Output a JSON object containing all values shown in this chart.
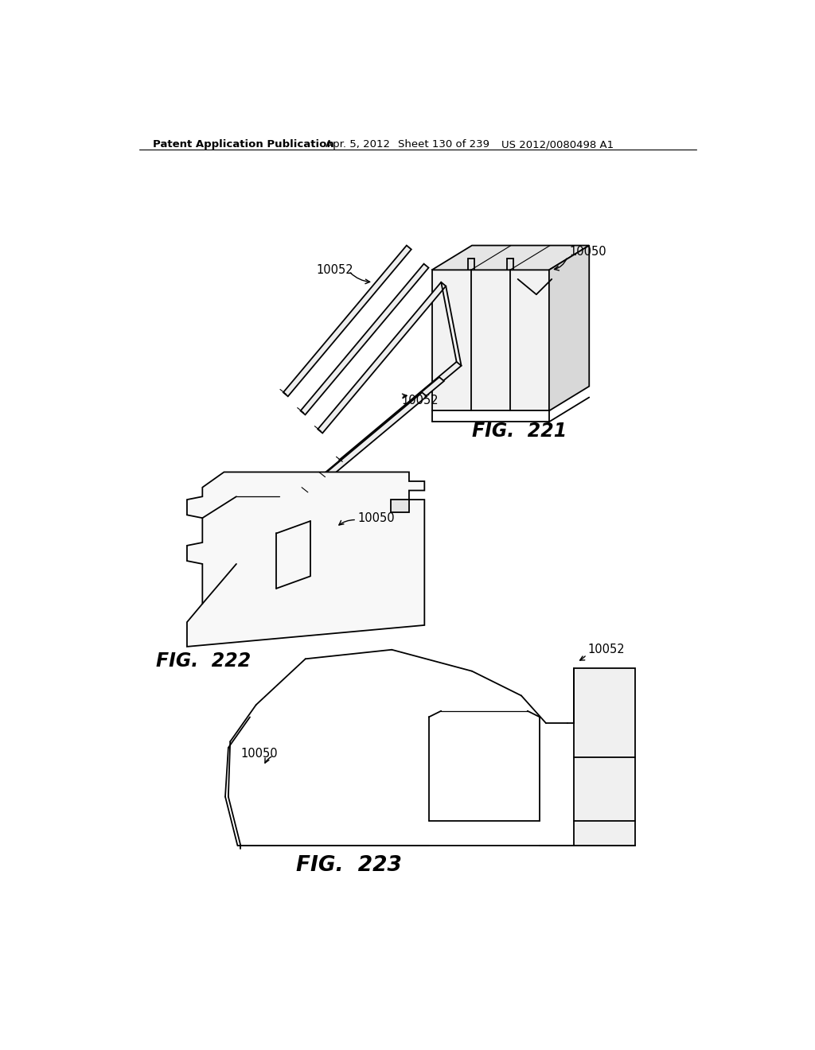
{
  "background_color": "#ffffff",
  "header_text": "Patent Application Publication",
  "header_date": "Apr. 5, 2012",
  "header_sheet": "Sheet 130 of 239",
  "header_patent": "US 2012/0080498 A1",
  "fig221_label": "FIG.  221",
  "fig222_label": "FIG.  222",
  "fig223_label": "FIG.  223",
  "line_color": "#000000",
  "line_width": 1.3,
  "text_color": "#000000",
  "header_fontsize": 9.5,
  "label_fontsize": 10.5,
  "fig_label_fontsize": 17
}
